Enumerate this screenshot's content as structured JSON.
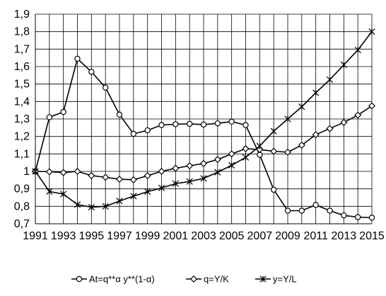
{
  "chart_data": {
    "type": "line",
    "title": "",
    "xlabel": "",
    "ylabel": "",
    "x": [
      1991,
      1992,
      1993,
      1994,
      1995,
      1996,
      1997,
      1998,
      1999,
      2000,
      2001,
      2002,
      2003,
      2004,
      2005,
      2006,
      2007,
      2008,
      2009,
      2010,
      2011,
      2012,
      2013,
      2014,
      2015
    ],
    "x_tick_labels": [
      "1991",
      "1993",
      "1995",
      "1997",
      "1999",
      "2001",
      "2003",
      "2005",
      "2007",
      "2009",
      "2011",
      "2013",
      "2015"
    ],
    "ylim": [
      0.7,
      1.9
    ],
    "y_ticks": [
      0.7,
      0.8,
      0.9,
      1.0,
      1.1,
      1.2,
      1.3,
      1.4,
      1.5,
      1.6,
      1.7,
      1.8,
      1.9
    ],
    "y_tick_labels": [
      "0,7",
      "0,8",
      "0,9",
      "1",
      "1,1",
      "1,2",
      "1,3",
      "1,4",
      "1,5",
      "1,6",
      "1,7",
      "1,8",
      "1,9"
    ],
    "grid": true,
    "legend_position": "bottom",
    "series": [
      {
        "name": "At=q**α y**(1-α)",
        "marker": "circle",
        "color": "#000000",
        "values": [
          1.0,
          1.31,
          1.34,
          1.645,
          1.57,
          1.48,
          1.325,
          1.215,
          1.235,
          1.265,
          1.27,
          1.272,
          1.268,
          1.275,
          1.285,
          1.265,
          1.095,
          0.895,
          0.775,
          0.775,
          0.808,
          0.775,
          0.748,
          0.738,
          0.735
        ]
      },
      {
        "name": "q=Y/K",
        "marker": "diamond",
        "color": "#000000",
        "values": [
          1.0,
          0.998,
          0.993,
          1.0,
          0.976,
          0.966,
          0.955,
          0.952,
          0.975,
          1.0,
          1.018,
          1.032,
          1.045,
          1.068,
          1.1,
          1.13,
          1.125,
          1.115,
          1.11,
          1.15,
          1.21,
          1.245,
          1.28,
          1.322,
          1.375
        ]
      },
      {
        "name": "y=Y/L",
        "marker": "asterisk",
        "color": "#000000",
        "values": [
          1.0,
          0.885,
          0.87,
          0.81,
          0.795,
          0.8,
          0.83,
          0.858,
          0.884,
          0.905,
          0.93,
          0.942,
          0.96,
          0.995,
          1.035,
          1.08,
          1.145,
          1.23,
          1.3,
          1.37,
          1.45,
          1.525,
          1.61,
          1.695,
          1.8
        ]
      }
    ]
  }
}
